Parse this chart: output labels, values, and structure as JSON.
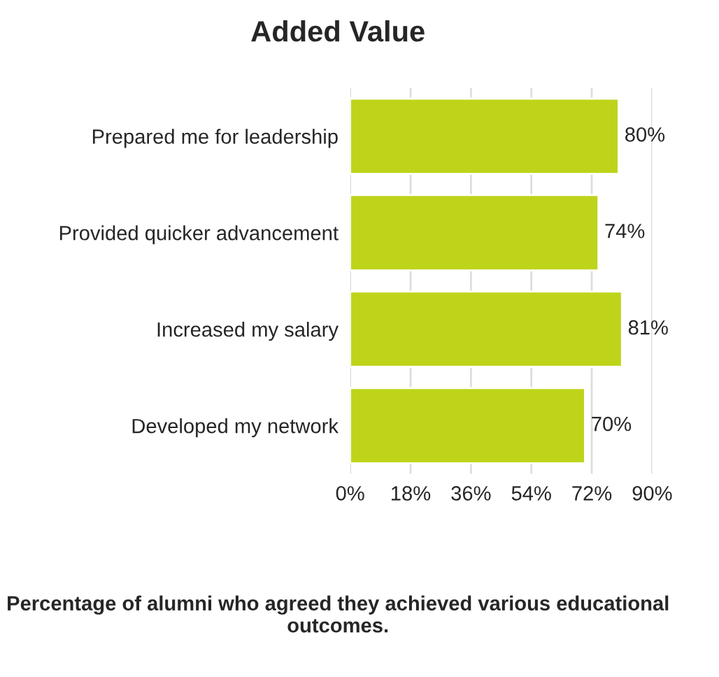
{
  "chart_data": {
    "type": "bar",
    "orientation": "horizontal",
    "title": "Added Value",
    "categories": [
      "Prepared me for leadership",
      "Provided quicker advancement",
      "Increased my salary",
      "Developed my network"
    ],
    "values": [
      80,
      74,
      81,
      70
    ],
    "value_labels": [
      "80%",
      "74%",
      "81%",
      "70%"
    ],
    "color": "#bed41a",
    "xlim": [
      0,
      90
    ],
    "xticks": [
      {
        "value": 0,
        "label": "0%"
      },
      {
        "value": 18,
        "label": "18%"
      },
      {
        "value": 36,
        "label": "36%"
      },
      {
        "value": 54,
        "label": "54%"
      },
      {
        "value": 72,
        "label": "72%"
      },
      {
        "value": 90,
        "label": "90%"
      }
    ],
    "grid": "x",
    "annotations": [
      "Percentage of alumni who agreed they achieved various educational outcomes."
    ]
  }
}
